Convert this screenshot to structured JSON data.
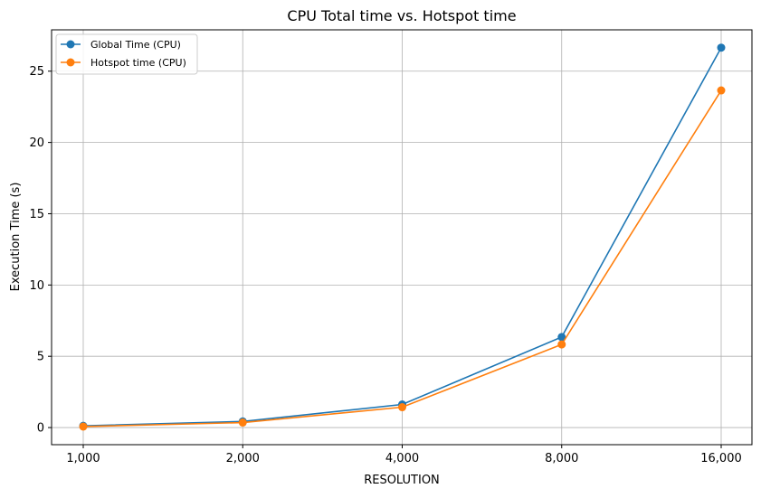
{
  "chart_data": {
    "type": "line",
    "title": "CPU Total time vs. Hotspot time",
    "xlabel": "RESOLUTION",
    "ylabel": "Execution Time (s)",
    "categories": [
      "1,000",
      "2,000",
      "4,000",
      "8,000",
      "16,000"
    ],
    "ylim": [
      -1.2,
      27.9
    ],
    "yticks": [
      0,
      5,
      10,
      15,
      20,
      25
    ],
    "grid": true,
    "legend_position": "top-left",
    "series": [
      {
        "name": "Global Time (CPU)",
        "color": "#1f77b4",
        "values": [
          0.12,
          0.43,
          1.62,
          6.35,
          26.65
        ]
      },
      {
        "name": "Hotspot time (CPU)",
        "color": "#ff7f0e",
        "values": [
          0.07,
          0.35,
          1.43,
          5.83,
          23.65
        ]
      }
    ]
  }
}
